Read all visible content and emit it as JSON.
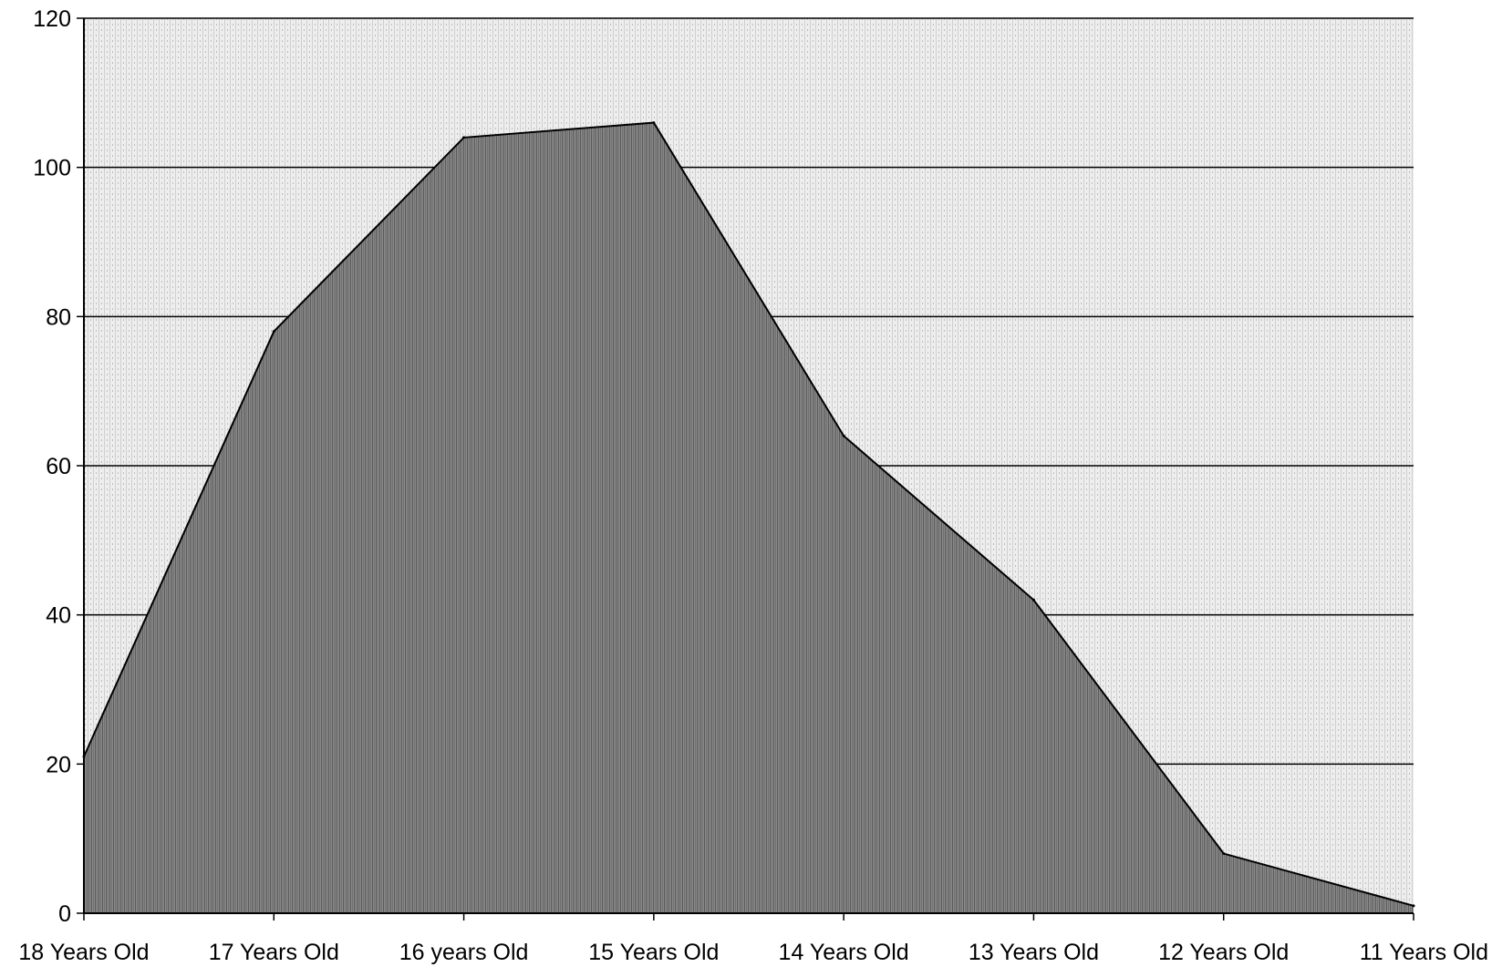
{
  "chart_data": {
    "type": "area",
    "title": "",
    "xlabel": "",
    "ylabel": "",
    "categories": [
      "18 Years Old",
      "17 Years Old",
      "16 years Old",
      "15 Years Old",
      "14 Years Old",
      "13 Years Old",
      "12 Years Old",
      "11 Years Old"
    ],
    "series": [
      {
        "values": [
          21,
          78,
          104,
          106,
          64,
          42,
          8,
          1
        ]
      }
    ],
    "ylim": [
      0,
      120
    ],
    "yticks": [
      "0",
      "20",
      "40",
      "60",
      "80",
      "100",
      "120"
    ],
    "grid": true,
    "legend": "none",
    "colors": {
      "area": "#7a7a7a",
      "line": "#000000",
      "grid": "#000000",
      "background": "#e6e6e6"
    }
  }
}
